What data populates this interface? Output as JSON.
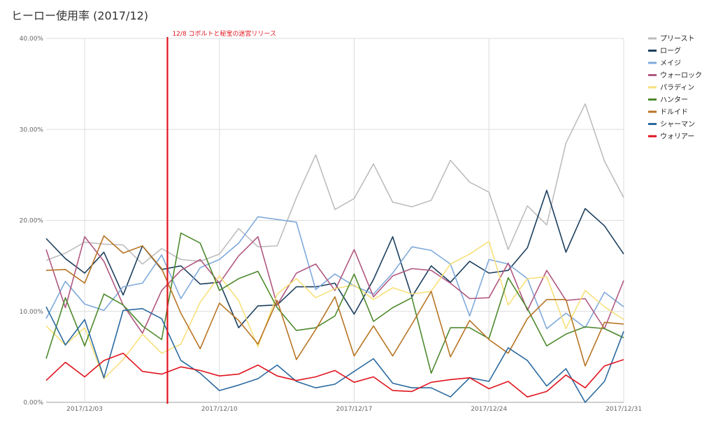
{
  "chart_data": {
    "type": "line",
    "title": "ヒーロー使用率 (2017/12)",
    "ylim": [
      0,
      40
    ],
    "yticks": [
      0,
      10,
      20,
      30,
      40
    ],
    "ytick_labels": [
      "0.00%",
      "10.00%",
      "20.00%",
      "30.00%",
      "40.00%"
    ],
    "x": [
      "2017/12/01",
      "2017/12/02",
      "2017/12/03",
      "2017/12/04",
      "2017/12/05",
      "2017/12/06",
      "2017/12/07",
      "2017/12/08",
      "2017/12/09",
      "2017/12/10",
      "2017/12/11",
      "2017/12/12",
      "2017/12/13",
      "2017/12/14",
      "2017/12/15",
      "2017/12/16",
      "2017/12/17",
      "2017/12/18",
      "2017/12/19",
      "2017/12/20",
      "2017/12/21",
      "2017/12/22",
      "2017/12/23",
      "2017/12/24",
      "2017/12/25",
      "2017/12/26",
      "2017/12/27",
      "2017/12/28",
      "2017/12/29",
      "2017/12/30",
      "2017/12/31"
    ],
    "xtick_labels": [
      "2017/12/03",
      "2017/12/10",
      "2017/12/17",
      "2017/12/24",
      "2017/12/31"
    ],
    "xtick_indices": [
      2,
      9,
      16,
      23,
      30
    ],
    "grid": true,
    "legend_position": "right",
    "annotation": {
      "label": "12/8 コボルトと秘宝の迷宮リリース",
      "x_index": 6.3,
      "color": "#e0141e"
    },
    "series": [
      {
        "name": "プリースト",
        "color": "#bdbdbd",
        "values": [
          15.6,
          16.4,
          17.6,
          17.4,
          17.3,
          15.2,
          16.9,
          15.7,
          15.5,
          16.3,
          19.1,
          17.1,
          17.2,
          22.5,
          27.2,
          21.2,
          22.4,
          26.2,
          22.0,
          21.5,
          22.2,
          26.6,
          24.2,
          23.1,
          16.8,
          21.6,
          19.5,
          28.5,
          32.8,
          26.5,
          22.5
        ]
      },
      {
        "name": "ローグ",
        "color": "#1c3f5e",
        "values": [
          18.0,
          15.8,
          14.2,
          16.5,
          11.8,
          17.2,
          14.6,
          15.0,
          13.0,
          13.2,
          8.2,
          10.6,
          10.7,
          12.7,
          12.7,
          13.1,
          9.7,
          13.5,
          18.2,
          11.6,
          15.0,
          13.2,
          15.5,
          14.2,
          14.5,
          17.0,
          23.3,
          16.5,
          21.3,
          19.4,
          16.3
        ]
      },
      {
        "name": "メイジ",
        "color": "#7faadb",
        "values": [
          9.2,
          13.3,
          10.8,
          10.1,
          12.7,
          13.1,
          16.2,
          11.4,
          14.8,
          15.7,
          17.5,
          20.4,
          20.1,
          19.8,
          12.4,
          14.1,
          12.8,
          11.9,
          14.2,
          17.1,
          16.7,
          15.2,
          9.5,
          15.7,
          15.2,
          13.6,
          8.1,
          9.8,
          8.2,
          12.1,
          10.5
        ]
      },
      {
        "name": "ウォーロック",
        "color": "#b05880",
        "values": [
          16.8,
          10.4,
          18.2,
          15.5,
          10.7,
          7.6,
          12.3,
          14.5,
          15.7,
          13.1,
          16.1,
          18.2,
          10.7,
          14.2,
          15.2,
          12.3,
          16.8,
          11.6,
          13.9,
          14.7,
          14.5,
          13.1,
          11.4,
          11.5,
          15.3,
          10.1,
          14.5,
          11.2,
          11.4,
          8.1,
          13.4
        ]
      },
      {
        "name": "パラディン",
        "color": "#f7e07a",
        "values": [
          8.4,
          6.3,
          8.2,
          2.6,
          4.7,
          7.5,
          5.4,
          6.4,
          11.0,
          13.9,
          11.2,
          6.1,
          11.9,
          13.6,
          11.5,
          12.5,
          12.9,
          11.3,
          12.6,
          11.9,
          12.2,
          15.2,
          16.3,
          17.7,
          10.7,
          13.6,
          13.8,
          8.1,
          12.3,
          10.5,
          9.1
        ]
      },
      {
        "name": "ハンター",
        "color": "#4e8a2e",
        "values": [
          4.8,
          11.5,
          6.2,
          11.9,
          10.7,
          8.4,
          6.9,
          18.6,
          17.5,
          12.3,
          13.6,
          14.4,
          10.4,
          7.9,
          8.2,
          9.5,
          14.1,
          8.9,
          10.4,
          11.5,
          3.2,
          8.2,
          8.2,
          7.0,
          13.7,
          10.3,
          6.2,
          7.5,
          8.3,
          8.1,
          7.1
        ]
      },
      {
        "name": "ドルイド",
        "color": "#b87525",
        "values": [
          14.5,
          14.6,
          13.1,
          18.3,
          16.4,
          17.2,
          14.7,
          9.8,
          5.9,
          10.9,
          9.0,
          6.4,
          11.2,
          4.7,
          8.0,
          11.6,
          5.1,
          8.4,
          5.1,
          8.6,
          12.2,
          5.0,
          9.0,
          6.9,
          5.4,
          9.2,
          11.3,
          11.3,
          4.0,
          8.8,
          8.6
        ]
      },
      {
        "name": "シャーマン",
        "color": "#2b6aa0",
        "values": [
          10.5,
          6.3,
          9.1,
          2.7,
          10.1,
          10.3,
          9.2,
          4.6,
          3.2,
          1.3,
          1.9,
          2.6,
          4.1,
          2.3,
          1.6,
          2.0,
          3.4,
          4.8,
          2.1,
          1.6,
          1.6,
          0.6,
          2.7,
          2.3,
          6.0,
          4.6,
          1.8,
          3.7,
          0.0,
          2.3,
          7.8
        ]
      },
      {
        "name": "ウォリアー",
        "color": "#e0141e",
        "values": [
          2.4,
          4.4,
          2.8,
          4.6,
          5.4,
          3.4,
          3.1,
          3.9,
          3.5,
          2.9,
          3.1,
          4.1,
          2.9,
          2.4,
          2.8,
          3.5,
          2.2,
          2.8,
          1.3,
          1.2,
          2.2,
          2.5,
          2.7,
          1.5,
          2.3,
          0.6,
          1.2,
          3.0,
          1.6,
          4.0,
          4.7
        ]
      }
    ]
  }
}
